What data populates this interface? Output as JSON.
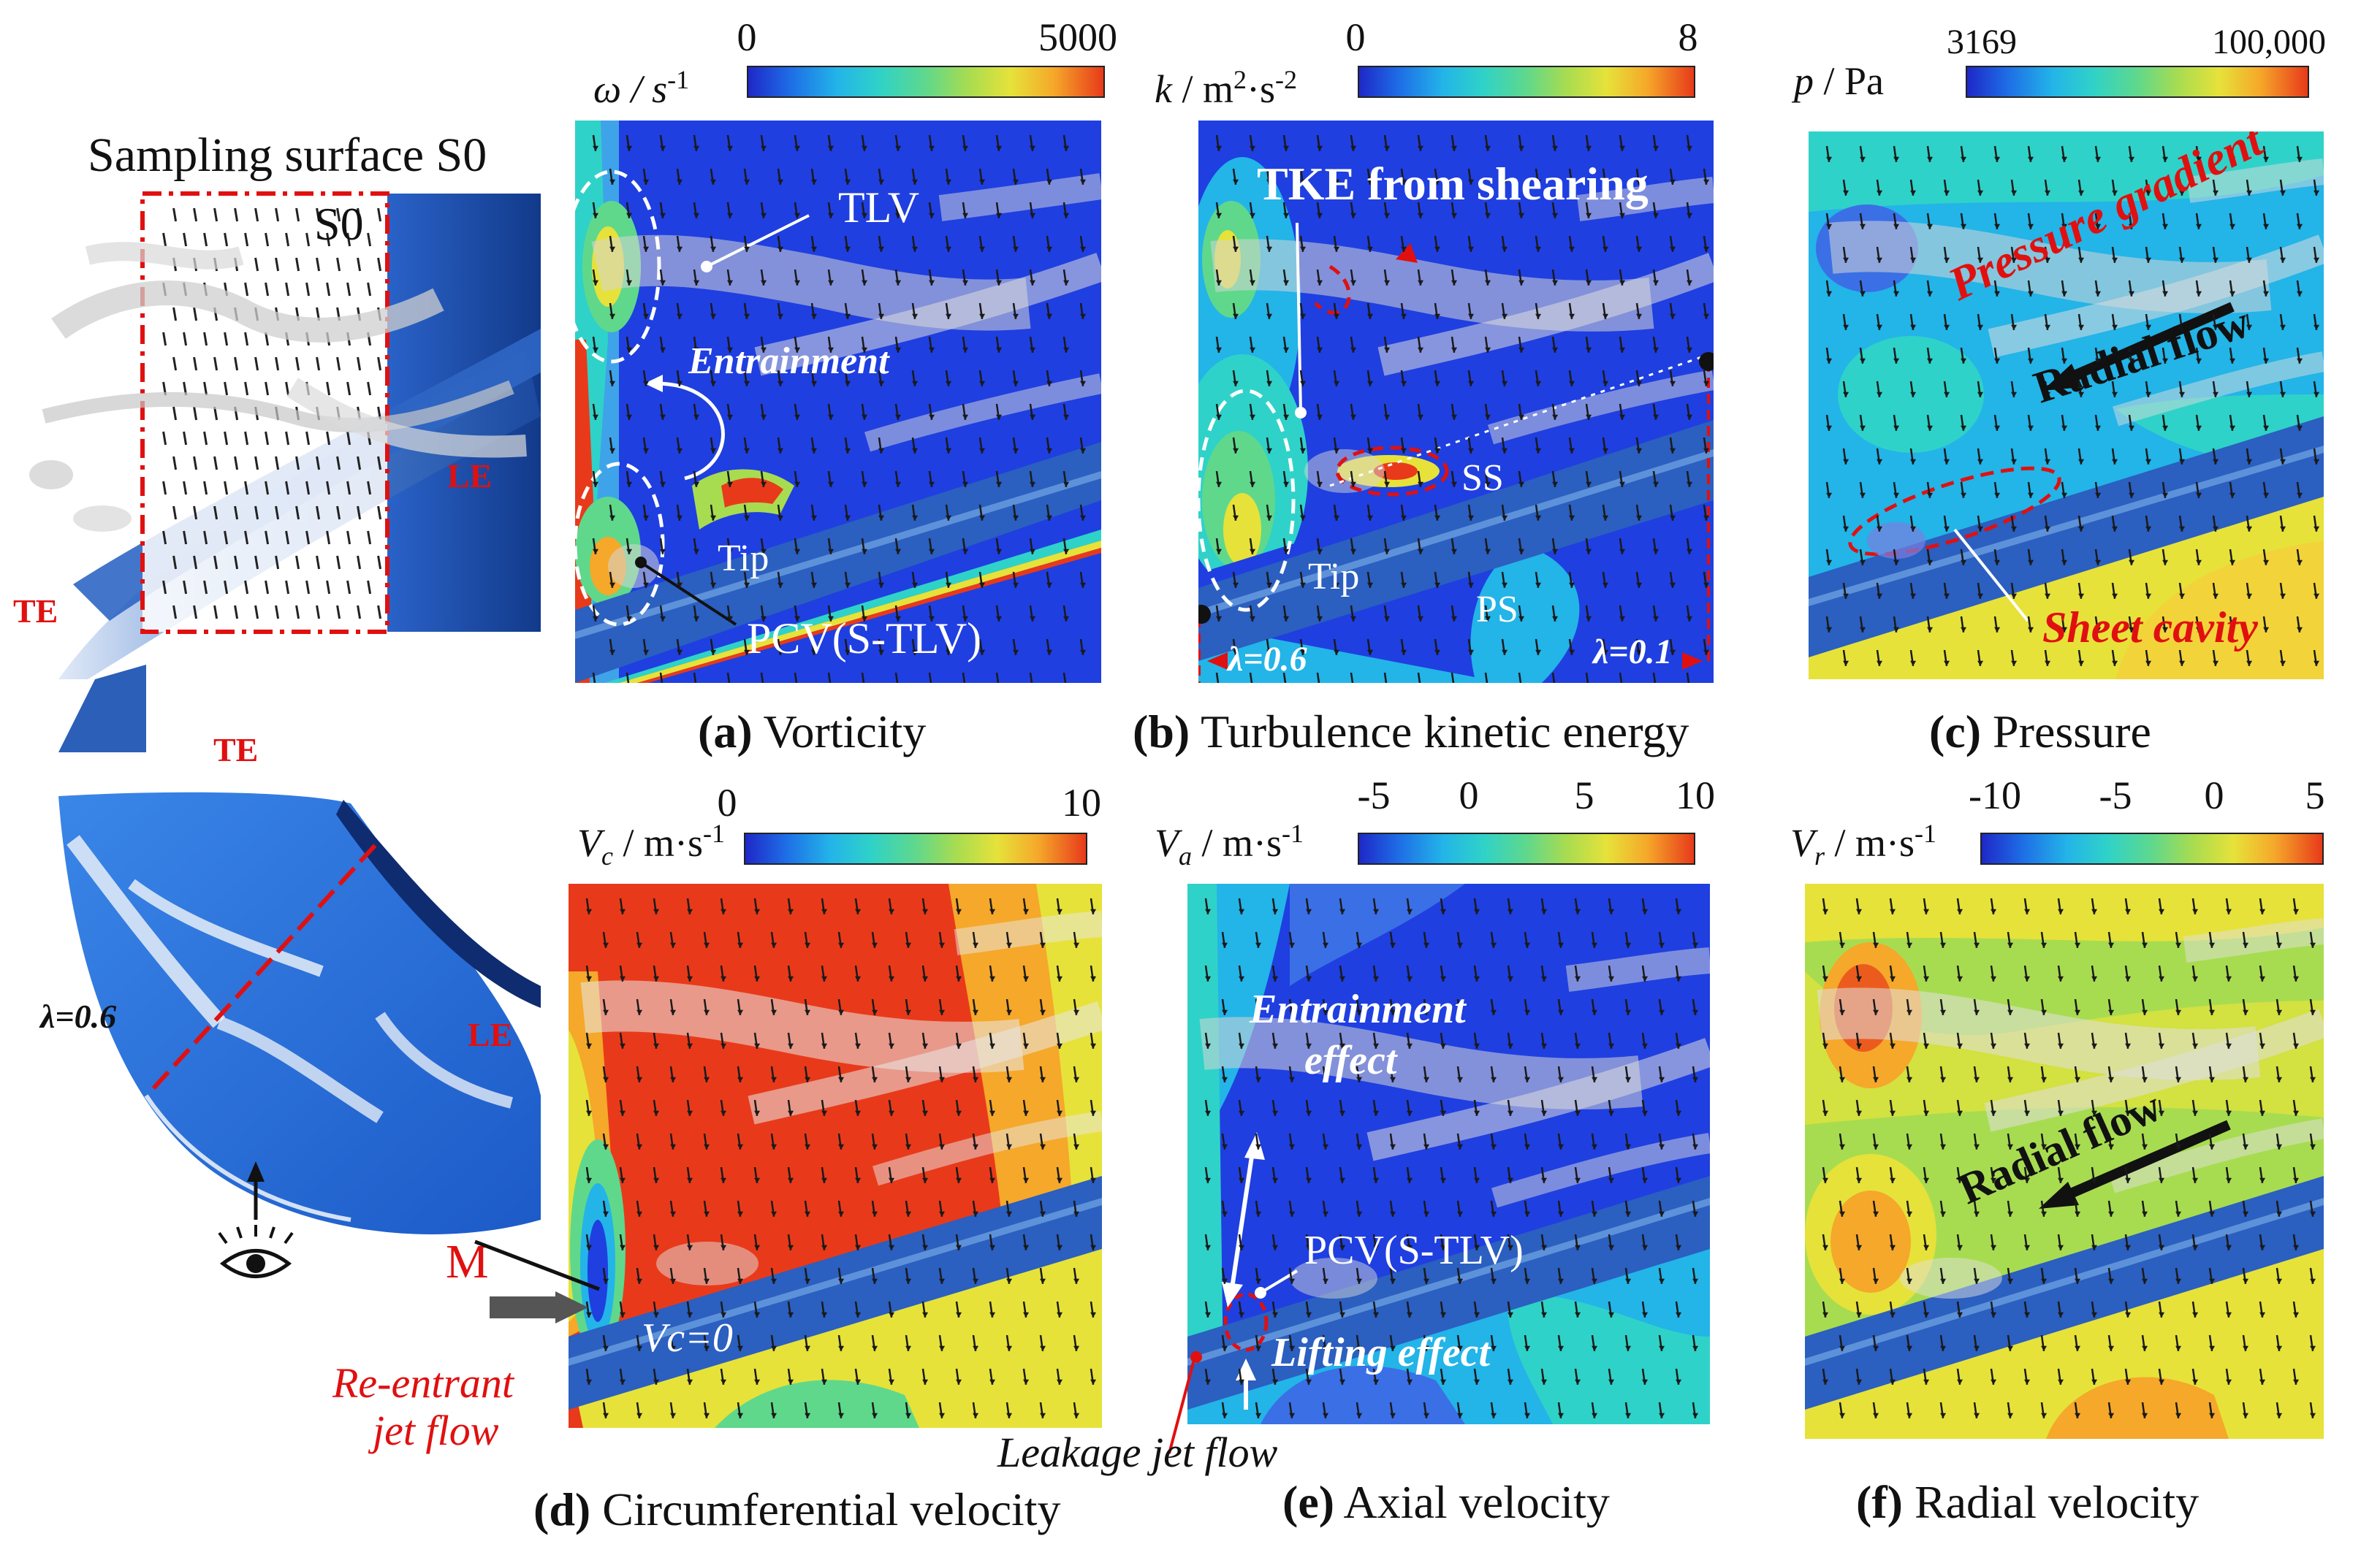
{
  "left": {
    "sampling_title": "Sampling surface S0",
    "s0": "S0",
    "te_top": "TE",
    "le_top": "LE",
    "te_bottom": "TE",
    "le_bottom": "LE",
    "lambda": "λ=0.6",
    "eye_icon": "eye-icon"
  },
  "panels": {
    "a": {
      "caption_letter": "(a)",
      "caption_text": " Vorticity",
      "cb_label": "ω / s",
      "cb_sup": "-1",
      "ticks": [
        "0",
        "5000"
      ],
      "tlv": "TLV",
      "entrainment": "Entrainment",
      "tip": "Tip",
      "pcv": "PCV(S-TLV)"
    },
    "b": {
      "caption_letter": "(b)",
      "caption_text": " Turbulence kinetic energy",
      "cb_label": "k / m",
      "cb_sup1": "2",
      "cb_mid": "·s",
      "cb_sup2": "-2",
      "ticks": [
        "0",
        "8"
      ],
      "tke": "TKE from shearing",
      "ss": "SS",
      "tip": "Tip",
      "ps": "PS",
      "lam1": "λ=0.6",
      "lam2": "λ=0.1"
    },
    "c": {
      "caption_letter": "(c)",
      "caption_text": " Pressure",
      "cb_label": "p / Pa",
      "ticks": [
        "3169",
        "100,000"
      ],
      "pressure_gradient": "Pressure gradient",
      "radial_flow": "Radial flow",
      "sheet_cavity": "Sheet cavity"
    },
    "d": {
      "caption_letter": "(d)",
      "caption_text": " Circumferential velocity",
      "cb_label_main": "V",
      "cb_label_sub": "c",
      "cb_label_rest": " / m·s",
      "cb_sup": "-1",
      "ticks": [
        "0",
        "10"
      ],
      "m": "M",
      "vc0": "Vc=0",
      "reentrant1": "Re-entrant",
      "reentrant2": "jet flow"
    },
    "e": {
      "caption_letter": "(e)",
      "caption_text": " Axial velocity",
      "cb_label_main": "V",
      "cb_label_sub": "a",
      "cb_label_rest": " / m·s",
      "cb_sup": "-1",
      "ticks": [
        "-5",
        "0",
        "5",
        "10"
      ],
      "entrainment1": "Entrainment",
      "entrainment2": "effect",
      "pcv": "PCV(S-TLV)",
      "lifting": "Lifting effect",
      "leakage": "Leakage jet flow"
    },
    "f": {
      "caption_letter": "(f)",
      "caption_text": " Radial velocity",
      "cb_label_main": "V",
      "cb_label_sub": "r",
      "cb_label_rest": " / m·s",
      "cb_sup": "-1",
      "ticks": [
        "-10",
        "-5",
        "0",
        "5"
      ],
      "radial_flow": "Radial flow"
    }
  },
  "colors": {
    "deep_blue": "#1a3fd6",
    "annotation_red": "#e01010",
    "dark_arrow": "#111111"
  }
}
